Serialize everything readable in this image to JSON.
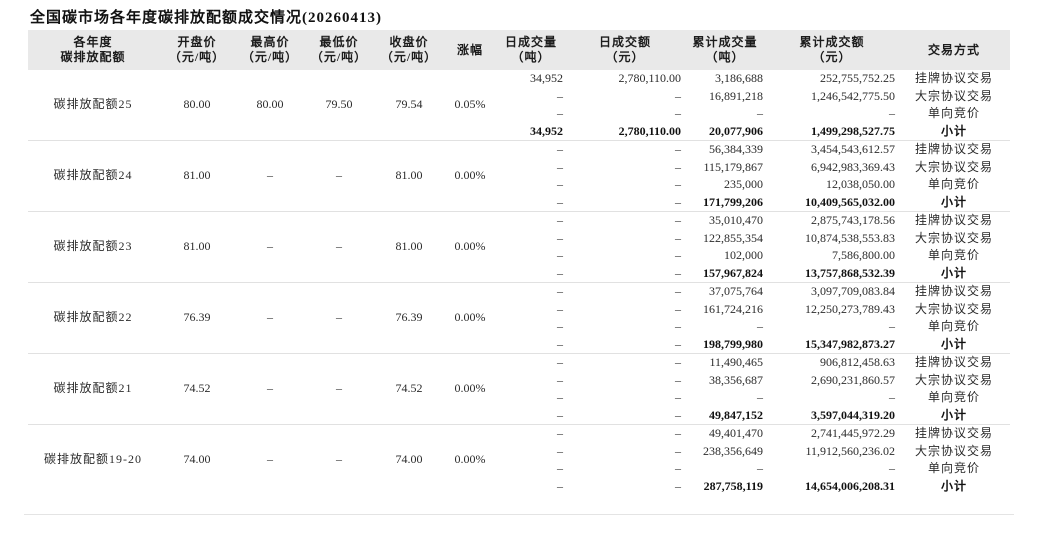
{
  "page_title": "全国碳市场各年度碳排放配额成交情况(20260413)",
  "chart_data": {
    "type": "table",
    "title": "全国碳市场各年度碳排放配额成交情况(20260413)",
    "header_lines": [
      [
        "各年度",
        "碳排放配额"
      ],
      [
        "开盘价",
        "（元/吨）"
      ],
      [
        "最高价",
        "（元/吨）"
      ],
      [
        "最低价",
        "（元/吨）"
      ],
      [
        "收盘价",
        "（元/吨）"
      ],
      [
        "涨幅"
      ],
      [
        "日成交量",
        "（吨）"
      ],
      [
        "日成交额",
        "（元）"
      ],
      [
        "累计成交量",
        "（吨）"
      ],
      [
        "累计成交额",
        "（元）"
      ],
      [
        "交易方式"
      ]
    ],
    "blocks": [
      {
        "name": "碳排放配额25",
        "open": "80.00",
        "high": "80.00",
        "low": "79.50",
        "close": "79.54",
        "change": "0.05%",
        "rows": [
          {
            "daily_vol": "34,952",
            "daily_amt": "2,780,110.00",
            "cum_vol": "3,186,688",
            "cum_amt": "252,755,752.25",
            "method": "挂牌协议交易",
            "bold": false
          },
          {
            "daily_vol": "–",
            "daily_amt": "–",
            "cum_vol": "16,891,218",
            "cum_amt": "1,246,542,775.50",
            "method": "大宗协议交易",
            "bold": false
          },
          {
            "daily_vol": "–",
            "daily_amt": "–",
            "cum_vol": "–",
            "cum_amt": "–",
            "method": "单向竞价",
            "bold": false
          },
          {
            "daily_vol": "34,952",
            "daily_amt": "2,780,110.00",
            "cum_vol": "20,077,906",
            "cum_amt": "1,499,298,527.75",
            "method": "小计",
            "bold": true
          }
        ]
      },
      {
        "name": "碳排放配额24",
        "open": "81.00",
        "high": "–",
        "low": "–",
        "close": "81.00",
        "change": "0.00%",
        "rows": [
          {
            "daily_vol": "–",
            "daily_amt": "–",
            "cum_vol": "56,384,339",
            "cum_amt": "3,454,543,612.57",
            "method": "挂牌协议交易",
            "bold": false
          },
          {
            "daily_vol": "–",
            "daily_amt": "–",
            "cum_vol": "115,179,867",
            "cum_amt": "6,942,983,369.43",
            "method": "大宗协议交易",
            "bold": false
          },
          {
            "daily_vol": "–",
            "daily_amt": "–",
            "cum_vol": "235,000",
            "cum_amt": "12,038,050.00",
            "method": "单向竞价",
            "bold": false
          },
          {
            "daily_vol": "–",
            "daily_amt": "–",
            "cum_vol": "171,799,206",
            "cum_amt": "10,409,565,032.00",
            "method": "小计",
            "bold": true
          }
        ]
      },
      {
        "name": "碳排放配额23",
        "open": "81.00",
        "high": "–",
        "low": "–",
        "close": "81.00",
        "change": "0.00%",
        "rows": [
          {
            "daily_vol": "–",
            "daily_amt": "–",
            "cum_vol": "35,010,470",
            "cum_amt": "2,875,743,178.56",
            "method": "挂牌协议交易",
            "bold": false
          },
          {
            "daily_vol": "–",
            "daily_amt": "–",
            "cum_vol": "122,855,354",
            "cum_amt": "10,874,538,553.83",
            "method": "大宗协议交易",
            "bold": false
          },
          {
            "daily_vol": "–",
            "daily_amt": "–",
            "cum_vol": "102,000",
            "cum_amt": "7,586,800.00",
            "method": "单向竞价",
            "bold": false
          },
          {
            "daily_vol": "–",
            "daily_amt": "–",
            "cum_vol": "157,967,824",
            "cum_amt": "13,757,868,532.39",
            "method": "小计",
            "bold": true
          }
        ]
      },
      {
        "name": "碳排放配额22",
        "open": "76.39",
        "high": "–",
        "low": "–",
        "close": "76.39",
        "change": "0.00%",
        "rows": [
          {
            "daily_vol": "–",
            "daily_amt": "–",
            "cum_vol": "37,075,764",
            "cum_amt": "3,097,709,083.84",
            "method": "挂牌协议交易",
            "bold": false
          },
          {
            "daily_vol": "–",
            "daily_amt": "–",
            "cum_vol": "161,724,216",
            "cum_amt": "12,250,273,789.43",
            "method": "大宗协议交易",
            "bold": false
          },
          {
            "daily_vol": "–",
            "daily_amt": "–",
            "cum_vol": "–",
            "cum_amt": "–",
            "method": "单向竞价",
            "bold": false
          },
          {
            "daily_vol": "–",
            "daily_amt": "–",
            "cum_vol": "198,799,980",
            "cum_amt": "15,347,982,873.27",
            "method": "小计",
            "bold": true
          }
        ]
      },
      {
        "name": "碳排放配额21",
        "open": "74.52",
        "high": "–",
        "low": "–",
        "close": "74.52",
        "change": "0.00%",
        "rows": [
          {
            "daily_vol": "–",
            "daily_amt": "–",
            "cum_vol": "11,490,465",
            "cum_amt": "906,812,458.63",
            "method": "挂牌协议交易",
            "bold": false
          },
          {
            "daily_vol": "–",
            "daily_amt": "–",
            "cum_vol": "38,356,687",
            "cum_amt": "2,690,231,860.57",
            "method": "大宗协议交易",
            "bold": false
          },
          {
            "daily_vol": "–",
            "daily_amt": "–",
            "cum_vol": "–",
            "cum_amt": "–",
            "method": "单向竞价",
            "bold": false
          },
          {
            "daily_vol": "–",
            "daily_amt": "–",
            "cum_vol": "49,847,152",
            "cum_amt": "3,597,044,319.20",
            "method": "小计",
            "bold": true
          }
        ]
      },
      {
        "name": "碳排放配额19-20",
        "open": "74.00",
        "high": "–",
        "low": "–",
        "close": "74.00",
        "change": "0.00%",
        "rows": [
          {
            "daily_vol": "–",
            "daily_amt": "–",
            "cum_vol": "49,401,470",
            "cum_amt": "2,741,445,972.29",
            "method": "挂牌协议交易",
            "bold": false
          },
          {
            "daily_vol": "–",
            "daily_amt": "–",
            "cum_vol": "238,356,649",
            "cum_amt": "11,912,560,236.02",
            "method": "大宗协议交易",
            "bold": false
          },
          {
            "daily_vol": "–",
            "daily_amt": "–",
            "cum_vol": "–",
            "cum_amt": "–",
            "method": "单向竞价",
            "bold": false
          },
          {
            "daily_vol": "–",
            "daily_amt": "–",
            "cum_vol": "287,758,119",
            "cum_amt": "14,654,006,208.31",
            "method": "小计",
            "bold": true
          }
        ]
      }
    ],
    "colors": {
      "header_bg": "#e9e9e9",
      "divider": "#e1e1e1",
      "text": "#2b2b2b",
      "title_text": "#111111"
    }
  }
}
